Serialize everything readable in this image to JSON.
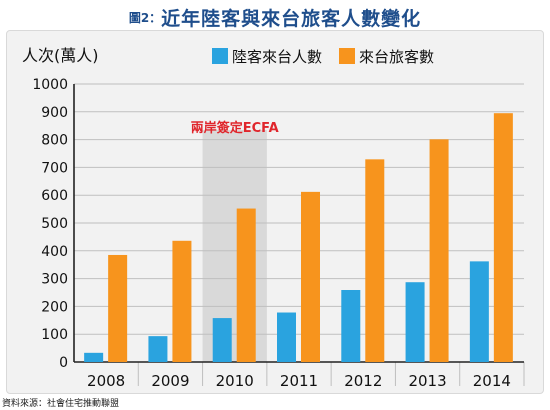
{
  "header": {
    "prefix": "圖2：",
    "title": "近年陸客與來台旅客人數變化"
  },
  "source": "資料來源：社會住宅推動聯盟",
  "chart_data": {
    "type": "bar",
    "title": "近年陸客與來台旅客人數變化",
    "ylabel": "人次(萬人)",
    "xlabel": "",
    "categories": [
      "2008",
      "2009",
      "2010",
      "2011",
      "2012",
      "2013",
      "2014"
    ],
    "ylim": [
      0,
      1000
    ],
    "yticks": [
      0,
      100,
      200,
      300,
      400,
      500,
      600,
      700,
      800,
      900,
      1000
    ],
    "grid": true,
    "legend": "top",
    "series": [
      {
        "name": "陸客來台人數",
        "color": "#2aa3df",
        "values": [
          33,
          93,
          158,
          178,
          259,
          287,
          362
        ]
      },
      {
        "name": "來台旅客數",
        "color": "#f7941d",
        "values": [
          385,
          436,
          552,
          612,
          729,
          801,
          895
        ]
      }
    ],
    "annotations": [
      {
        "text": "兩岸簽定ECFA",
        "category": "2010",
        "color": "#e0262c",
        "highlight_color": "#d9d9d9"
      }
    ]
  }
}
